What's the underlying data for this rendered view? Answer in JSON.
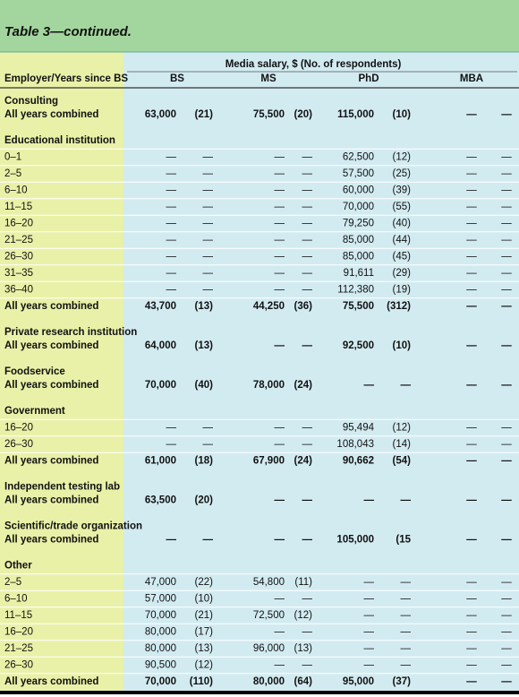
{
  "title": "Table 3—continued.",
  "header": {
    "span": "Media salary, $ (No. of respondents)",
    "columns": [
      "Employer/Years since BS",
      "BS",
      "MS",
      "PhD",
      "MBA"
    ]
  },
  "sections": [
    {
      "title": "Consulting",
      "rows": [
        [
          "All years combined",
          "63,000",
          "(21)",
          "75,500",
          "(20)",
          "115,000",
          "(10)",
          "—",
          "—"
        ]
      ]
    },
    {
      "title": "Educational institution",
      "rows": [
        [
          "0–1",
          "—",
          "—",
          "—",
          "—",
          "62,500",
          "(12)",
          "—",
          "—"
        ],
        [
          "2–5",
          "—",
          "—",
          "—",
          "—",
          "57,500",
          "(25)",
          "—",
          "—"
        ],
        [
          "6–10",
          "—",
          "—",
          "—",
          "—",
          "60,000",
          "(39)",
          "—",
          "—"
        ],
        [
          "11–15",
          "—",
          "—",
          "—",
          "—",
          "70,000",
          "(55)",
          "—",
          "—"
        ],
        [
          "16–20",
          "—",
          "—",
          "—",
          "—",
          "79,250",
          "(40)",
          "—",
          "—"
        ],
        [
          "21–25",
          "—",
          "—",
          "—",
          "—",
          "85,000",
          "(44)",
          "—",
          "—"
        ],
        [
          "26–30",
          "—",
          "—",
          "—",
          "—",
          "85,000",
          "(45)",
          "—",
          "—"
        ],
        [
          "31–35",
          "—",
          "—",
          "—",
          "—",
          "91,611",
          "(29)",
          "—",
          "—"
        ],
        [
          "36–40",
          "—",
          "—",
          "—",
          "—",
          "112,380",
          "(19)",
          "—",
          "—"
        ],
        [
          "All years combined",
          "43,700",
          "(13)",
          "44,250",
          "(36)",
          "75,500",
          "(312)",
          "—",
          "—"
        ]
      ]
    },
    {
      "title": "Private research institution",
      "rows": [
        [
          "All years combined",
          "64,000",
          "(13)",
          "—",
          "—",
          "92,500",
          "(10)",
          "—",
          "—"
        ]
      ]
    },
    {
      "title": "Foodservice",
      "rows": [
        [
          "All years combined",
          "70,000",
          "(40)",
          "78,000",
          "(24)",
          "—",
          "—",
          "—",
          "—"
        ]
      ]
    },
    {
      "title": "Government",
      "rows": [
        [
          "16–20",
          "—",
          "—",
          "—",
          "—",
          "95,494",
          "(12)",
          "—",
          "—"
        ],
        [
          "26–30",
          "—",
          "—",
          "—",
          "—",
          "108,043",
          "(14)",
          "—",
          "—"
        ],
        [
          "All years combined",
          "61,000",
          "(18)",
          "67,900",
          "(24)",
          "90,662",
          "(54)",
          "—",
          "—"
        ]
      ]
    },
    {
      "title": "Independent testing lab",
      "rows": [
        [
          "All years combined",
          "63,500",
          "(20)",
          "—",
          "—",
          "—",
          "—",
          "—",
          "—"
        ]
      ]
    },
    {
      "title": "Scientific/trade organization",
      "rows": [
        [
          "All years combined",
          "—",
          "—",
          "—",
          "—",
          "105,000",
          "(15",
          "—",
          "—"
        ]
      ]
    },
    {
      "title": "Other",
      "rows": [
        [
          "2–5",
          "47,000",
          "(22)",
          "54,800",
          "(11)",
          "—",
          "—",
          "—",
          "—"
        ],
        [
          "6–10",
          "57,000",
          "(10)",
          "—",
          "—",
          "—",
          "—",
          "—",
          "—"
        ],
        [
          "11–15",
          "70,000",
          "(21)",
          "72,500",
          "(12)",
          "—",
          "—",
          "—",
          "—"
        ],
        [
          "16–20",
          "80,000",
          "(17)",
          "—",
          "—",
          "—",
          "—",
          "—",
          "—"
        ],
        [
          "21–25",
          "80,000",
          "(13)",
          "96,000",
          "(13)",
          "—",
          "—",
          "—",
          "—"
        ],
        [
          "26–30",
          "90,500",
          "(12)",
          "—",
          "—",
          "—",
          "—",
          "—",
          "—"
        ],
        [
          "All years combined",
          "70,000",
          "(110)",
          "80,000",
          "(64)",
          "95,000",
          "(37)",
          "—",
          "—"
        ]
      ]
    }
  ]
}
